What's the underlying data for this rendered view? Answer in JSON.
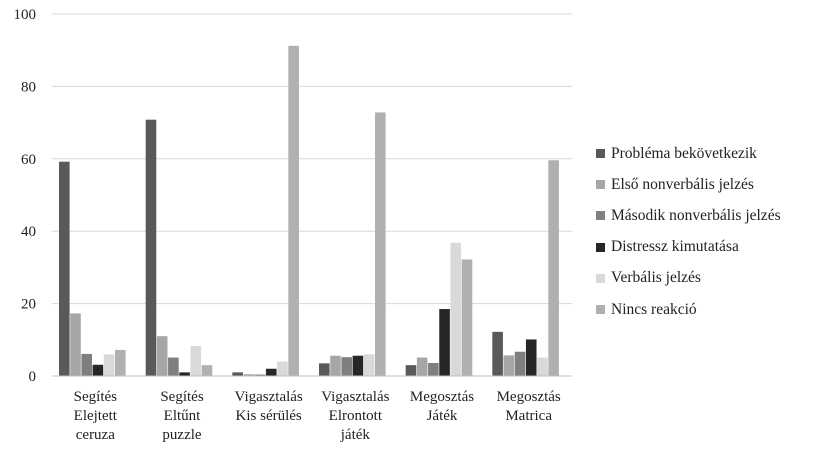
{
  "chart_data": {
    "type": "bar",
    "categories": [
      [
        "Segítés",
        "Elejtett",
        "ceruza"
      ],
      [
        "Segítés",
        "Eltűnt",
        "puzzle"
      ],
      [
        "Vigasztalás",
        "Kis sérülés"
      ],
      [
        "Vigasztalás",
        "Elrontott",
        "játék"
      ],
      [
        "Megosztás",
        "Játék"
      ],
      [
        "Megosztás",
        "Matrica"
      ]
    ],
    "series": [
      {
        "name": "Probléma bekövetkezik",
        "color": "#595959",
        "values": [
          59.2,
          70.8,
          1.0,
          3.5,
          3.0,
          12.2
        ]
      },
      {
        "name": "Első nonverbális jelzés",
        "color": "#a6a6a6",
        "values": [
          17.3,
          11.0,
          0.5,
          5.6,
          5.1,
          5.7
        ]
      },
      {
        "name": "Második nonverbális jelzés",
        "color": "#7f7f7f",
        "values": [
          6.1,
          5.1,
          0.4,
          5.2,
          3.6,
          6.7
        ]
      },
      {
        "name": "Distressz kimutatása",
        "color": "#262626",
        "values": [
          3.1,
          1.0,
          2.0,
          5.6,
          18.5,
          10.1
        ]
      },
      {
        "name": "Verbális jelzés",
        "color": "#d9d9d9",
        "values": [
          6.0,
          8.3,
          4.0,
          6.0,
          36.8,
          5.1
        ]
      },
      {
        "name": "Nincs reakció",
        "color": "#b0b0b0",
        "values": [
          7.2,
          3.0,
          91.2,
          72.8,
          32.2,
          59.6
        ]
      }
    ],
    "yticks": [
      "0",
      "20",
      "40",
      "60",
      "80",
      "100"
    ],
    "ylim": [
      0,
      100
    ],
    "grid": true,
    "legend_position": "right"
  }
}
